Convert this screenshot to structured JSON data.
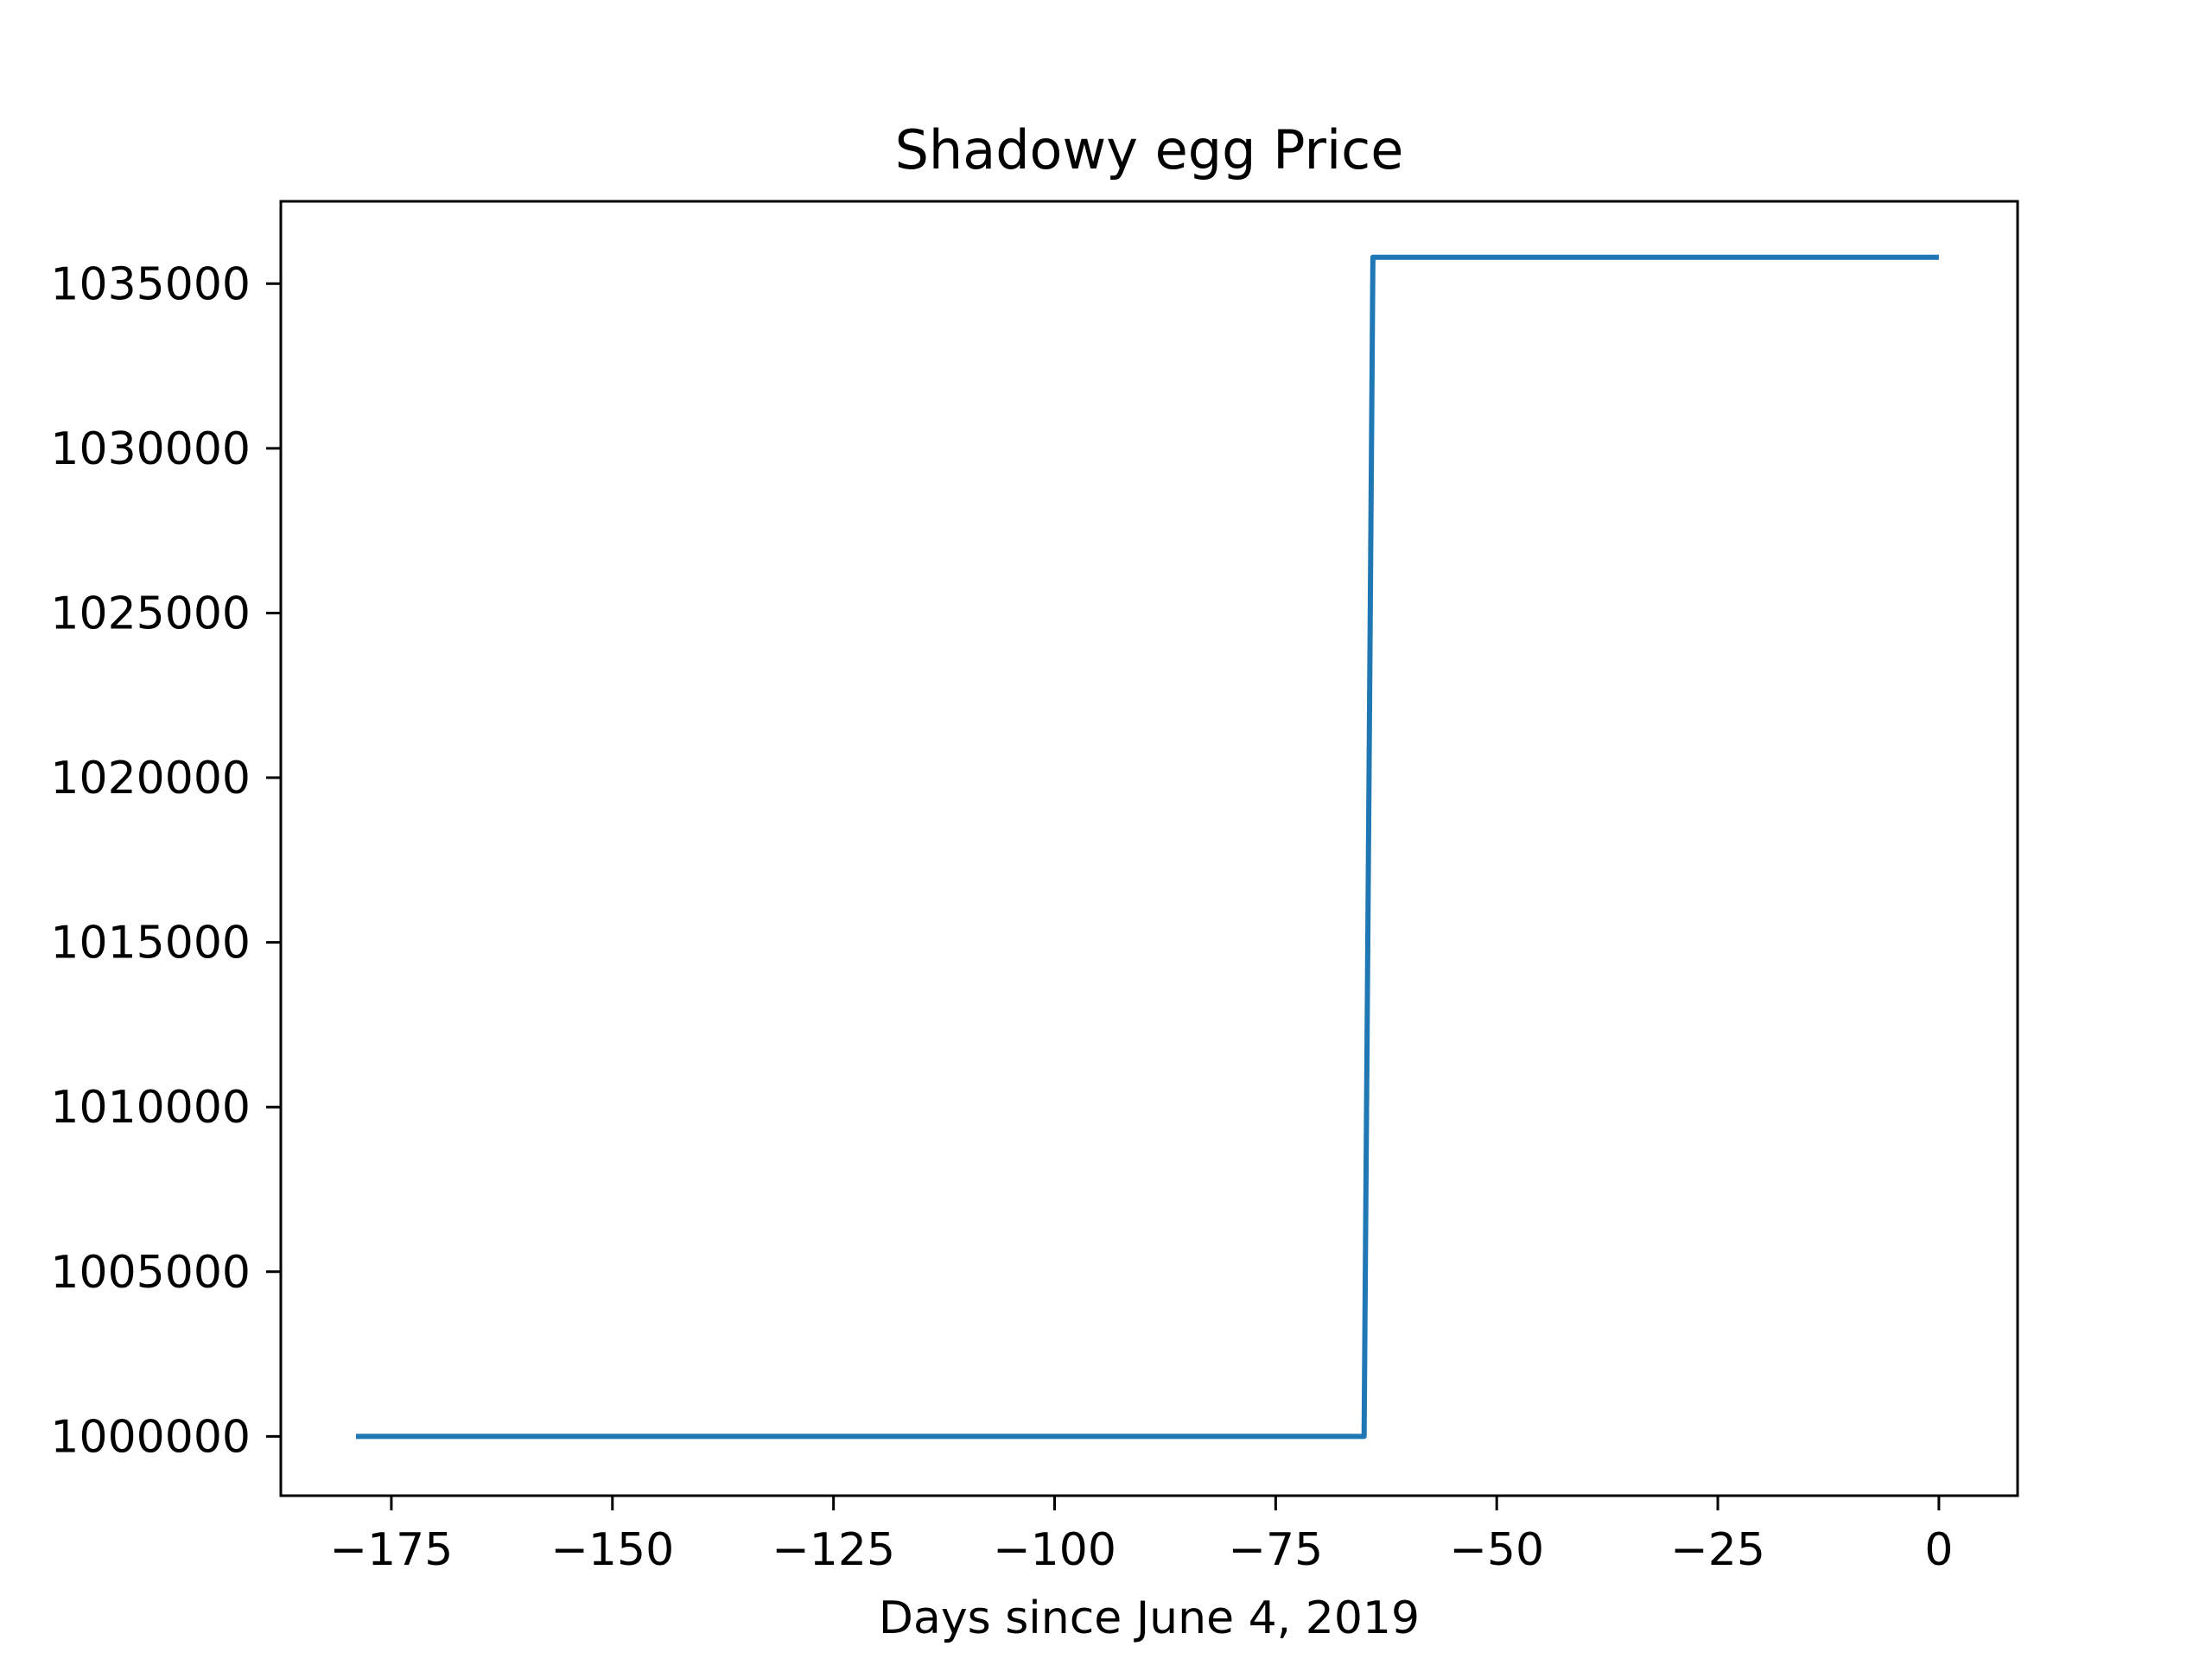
{
  "chart_data": {
    "type": "line",
    "title": "Shadowy egg Price",
    "xlabel": "Days since June 4, 2019",
    "ylabel": "",
    "xlim": [
      -187.5,
      8.9
    ],
    "ylim": [
      998200,
      1037500
    ],
    "xticks": [
      -175,
      -150,
      -125,
      -100,
      -75,
      -50,
      -25,
      0
    ],
    "xtick_labels": [
      "−175",
      "−150",
      "−125",
      "−100",
      "−75",
      "−50",
      "−25",
      "0"
    ],
    "yticks": [
      1000000,
      1005000,
      1010000,
      1015000,
      1020000,
      1025000,
      1030000,
      1035000
    ],
    "ytick_labels": [
      "1000000",
      "1005000",
      "1010000",
      "1015000",
      "1020000",
      "1025000",
      "1030000",
      "1035000"
    ],
    "grid": false,
    "series": [
      {
        "color": "#1f77b4",
        "x": [
          -179,
          -65,
          -64,
          0
        ],
        "y": [
          1000000,
          1000000,
          1035800,
          1035800
        ]
      }
    ]
  }
}
